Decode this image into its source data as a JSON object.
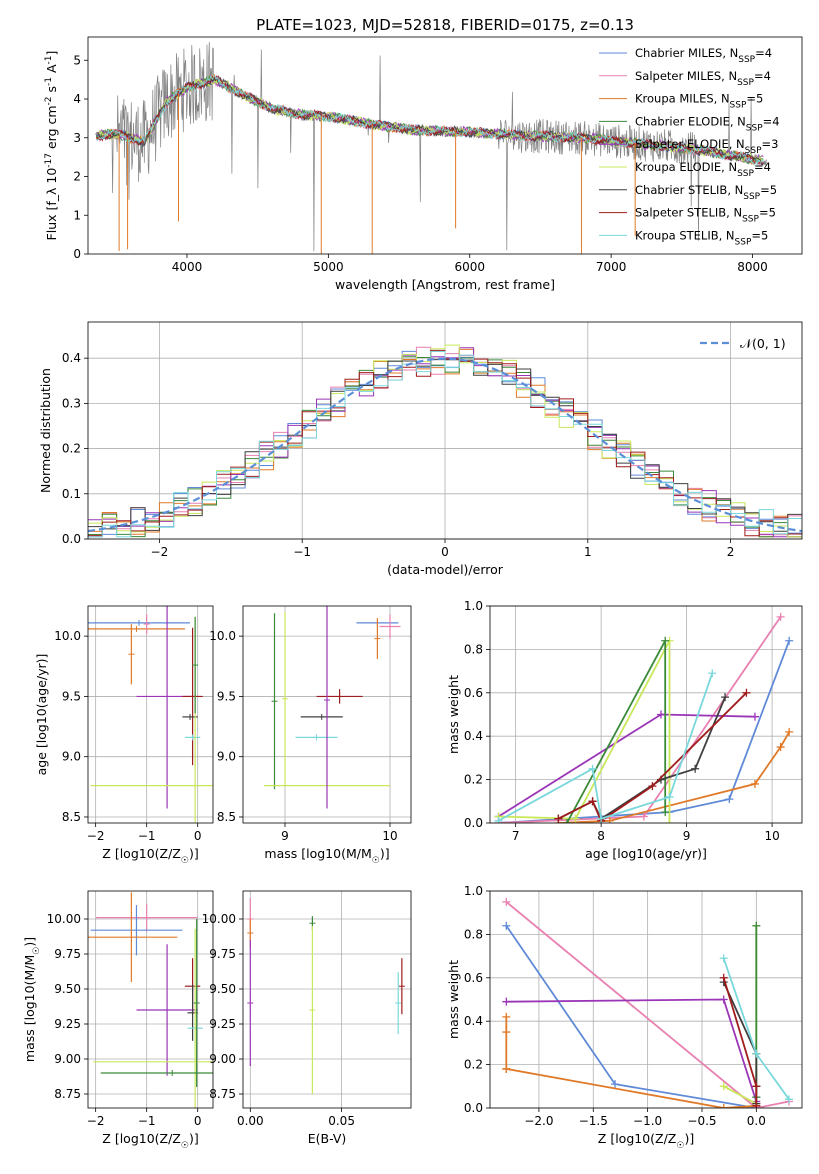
{
  "figure": {
    "title": "PLATE=1023, MJD=52818, FIBERID=0175, z=0.13"
  },
  "colors": {
    "chabrier_miles": "#5f8ad8",
    "salpeter_miles": "#e880b0",
    "kroupa_miles": "#e07a28",
    "chabrier_elodie": "#3a8a3a",
    "salpeter_elodie": "#9b35b8",
    "kroupa_elodie": "#c8e85a",
    "chabrier_stelib": "#3f3f3f",
    "salpeter_stelib": "#a01c1c",
    "kroupa_stelib": "#7ad8dc",
    "observed": "#808080",
    "normal": "#5b8fd8"
  },
  "chart_data": [
    {
      "id": "spectrum",
      "type": "line",
      "xlabel": "wavelength [Angstrom, rest frame]",
      "ylabel": "Flux [f_λ 10^-17 erg cm^-2 s^-1 A^-1]",
      "xlim": [
        3300,
        8350
      ],
      "ylim": [
        0,
        5.6
      ],
      "xticks": [
        4000,
        5000,
        6000,
        7000,
        8000
      ],
      "yticks": [
        0,
        1,
        2,
        3,
        4,
        5
      ],
      "legend_position": "top-right",
      "legend": [
        {
          "name": "Chabrier MILES, N_SSP=4",
          "color_key": "chabrier_miles"
        },
        {
          "name": "Salpeter MILES, N_SSP=4",
          "color_key": "salpeter_miles"
        },
        {
          "name": "Kroupa MILES, N_SSP=5",
          "color_key": "kroupa_miles"
        },
        {
          "name": "Chabrier ELODIE, N_SSP=4",
          "color_key": "chabrier_elodie"
        },
        {
          "name": "Salpeter ELODIE, N_SSP=3",
          "color_key": "salpeter_elodie"
        },
        {
          "name": "Kroupa ELODIE, N_SSP=4",
          "color_key": "kroupa_elodie"
        },
        {
          "name": "Chabrier STELIB, N_SSP=5",
          "color_key": "chabrier_stelib"
        },
        {
          "name": "Salpeter STELIB, N_SSP=5",
          "color_key": "salpeter_stelib"
        },
        {
          "name": "Kroupa STELIB, N_SSP=5",
          "color_key": "kroupa_stelib"
        }
      ],
      "continuum": {
        "x": [
          3350,
          3500,
          3700,
          3850,
          4000,
          4200,
          4400,
          4600,
          4800,
          5000,
          5300,
          5600,
          6000,
          6400,
          6800,
          7200,
          7600,
          8000,
          8100
        ],
        "y": [
          3.05,
          3.1,
          2.9,
          3.9,
          4.3,
          4.5,
          4.1,
          3.75,
          3.6,
          3.55,
          3.35,
          3.2,
          3.15,
          3.05,
          3.0,
          2.85,
          2.7,
          2.45,
          2.4
        ]
      },
      "absorption_lines": [
        {
          "x": 3520,
          "depth": 3.0
        },
        {
          "x": 3580,
          "depth": 2.9
        },
        {
          "x": 3940,
          "depth": 3.3
        },
        {
          "x": 4950,
          "depth": 3.6
        },
        {
          "x": 5310,
          "depth": 3.4
        },
        {
          "x": 5900,
          "depth": 2.5
        },
        {
          "x": 6790,
          "depth": 3.0
        },
        {
          "x": 7170,
          "depth": 2.4
        }
      ]
    },
    {
      "id": "residuals",
      "type": "histogram",
      "xlabel": "(data-model)/error",
      "ylabel": "Normed distribution",
      "xlim": [
        -2.5,
        2.5
      ],
      "ylim": [
        0,
        0.48
      ],
      "xticks": [
        -2,
        -1,
        0,
        1,
        2
      ],
      "yticks": [
        0.0,
        0.1,
        0.2,
        0.3,
        0.4
      ],
      "legend_position": "top-right",
      "legend": [
        {
          "name": "𝒩(0, 1)",
          "color_key": "normal"
        }
      ],
      "bin_width": 0.1,
      "grid": true
    },
    {
      "id": "age_vs_Z",
      "type": "errorbar",
      "xlabel": "Z [log10(Z/Z_☉)]",
      "ylabel": "age [log10(age/yr)]",
      "xlim": [
        -2.15,
        0.3
      ],
      "ylim": [
        8.45,
        10.25
      ],
      "xticks": [
        -2,
        -1,
        0
      ],
      "yticks": [
        8.5,
        9.0,
        9.5,
        10.0
      ],
      "points": [
        {
          "color_key": "chabrier_miles",
          "x": -1.15,
          "xerr": 1.0,
          "y": 10.11,
          "yerr": 0.0
        },
        {
          "color_key": "kroupa_miles",
          "x": -1.2,
          "xerr": 0.95,
          "y": 10.06,
          "yerr": 0.0
        },
        {
          "color_key": "salpeter_miles",
          "x": -1.0,
          "xerr": 0.0,
          "y": 10.1,
          "yerr": 0.08
        },
        {
          "color_key": "kroupa_miles",
          "x": -1.3,
          "xerr": 0.0,
          "y": 9.85,
          "yerr": 0.25
        },
        {
          "color_key": "salpeter_elodie",
          "x": -0.6,
          "xerr": 0.6,
          "y": 9.5,
          "yerr": 0.93
        },
        {
          "color_key": "salpeter_stelib",
          "x": -0.1,
          "xerr": 0.2,
          "y": 9.5,
          "yerr": 0.57
        },
        {
          "color_key": "chabrier_stelib",
          "x": -0.15,
          "xerr": 0.15,
          "y": 9.33,
          "yerr": 0.0
        },
        {
          "color_key": "kroupa_stelib",
          "x": -0.1,
          "xerr": 0.15,
          "y": 9.16,
          "yerr": 0.0
        },
        {
          "color_key": "kroupa_elodie",
          "x": -0.05,
          "xerr": 2.05,
          "y": 8.76,
          "yerr": 1.4
        },
        {
          "color_key": "chabrier_elodie",
          "x": -0.05,
          "xerr": 0.0,
          "y": 9.76,
          "yerr": 0.4
        }
      ]
    },
    {
      "id": "age_vs_mass",
      "type": "errorbar",
      "xlabel": "mass [log10(M/M_☉)]",
      "ylabel": "",
      "xlim": [
        8.6,
        10.2
      ],
      "ylim": [
        8.45,
        10.25
      ],
      "xticks": [
        9,
        10
      ],
      "yticks": [
        8.5,
        9.0,
        9.5,
        10.0
      ],
      "points": [
        {
          "color_key": "chabrier_elodie",
          "x": 8.9,
          "xerr": 0.0,
          "y": 9.46,
          "yerr": 0.73
        },
        {
          "color_key": "kroupa_elodie",
          "x": 9.0,
          "xerr": 0.0,
          "y": 9.48,
          "yerr": 0.72
        },
        {
          "color_key": "kroupa_elodie",
          "x": 9.4,
          "xerr": 0.6,
          "y": 8.76,
          "yerr": 0.0
        },
        {
          "color_key": "kroupa_stelib",
          "x": 9.3,
          "xerr": 0.2,
          "y": 9.16,
          "yerr": 0.0
        },
        {
          "color_key": "chabrier_stelib",
          "x": 9.35,
          "xerr": 0.2,
          "y": 9.33,
          "yerr": 0.0
        },
        {
          "color_key": "salpeter_stelib",
          "x": 9.52,
          "xerr": 0.22,
          "y": 9.5,
          "yerr": 0.06
        },
        {
          "color_key": "salpeter_elodie",
          "x": 9.4,
          "xerr": 0.0,
          "y": 9.47,
          "yerr": 0.9
        },
        {
          "color_key": "chabrier_miles",
          "x": 9.88,
          "xerr": 0.2,
          "y": 10.11,
          "yerr": 0.0
        },
        {
          "color_key": "kroupa_miles",
          "x": 9.88,
          "xerr": 0.0,
          "y": 9.98,
          "yerr": 0.17
        },
        {
          "color_key": "salpeter_miles",
          "x": 10.0,
          "xerr": 0.1,
          "y": 10.08,
          "yerr": 0.1
        }
      ]
    },
    {
      "id": "mass_weight_vs_age",
      "type": "line",
      "xlabel": "age [log10(age/yr)]",
      "ylabel": "mass weight",
      "xlim": [
        6.7,
        10.35
      ],
      "ylim": [
        0,
        1.0
      ],
      "xticks": [
        7,
        8,
        9,
        10
      ],
      "yticks": [
        0.0,
        0.2,
        0.4,
        0.6,
        0.8,
        1.0
      ],
      "series": [
        {
          "color_key": "chabrier_miles",
          "x": [
            6.8,
            8.8,
            9.5,
            10.2
          ],
          "y": [
            0.0,
            0.05,
            0.11,
            0.84
          ]
        },
        {
          "color_key": "salpeter_miles",
          "x": [
            6.8,
            8.5,
            10.1
          ],
          "y": [
            0.0,
            0.03,
            0.95
          ]
        },
        {
          "color_key": "kroupa_miles",
          "x": [
            7.5,
            8.1,
            9.8,
            10.1,
            10.2
          ],
          "y": [
            0.0,
            0.01,
            0.18,
            0.35,
            0.42
          ]
        },
        {
          "color_key": "salpeter_elodie",
          "x": [
            6.8,
            8.7,
            9.8
          ],
          "y": [
            0.03,
            0.5,
            0.49
          ]
        },
        {
          "color_key": "kroupa_elodie",
          "x": [
            6.8,
            7.7,
            8.8,
            8.8
          ],
          "y": [
            0.03,
            0.02,
            0.84,
            0.0
          ]
        },
        {
          "color_key": "chabrier_elodie",
          "x": [
            7.6,
            8.75,
            8.75
          ],
          "y": [
            0.0,
            0.84,
            0.05
          ]
        },
        {
          "color_key": "chabrier_stelib",
          "x": [
            7.5,
            7.9,
            8.0,
            8.7,
            9.1,
            9.45
          ],
          "y": [
            0.02,
            0.1,
            0.02,
            0.2,
            0.25,
            0.58
          ]
        },
        {
          "color_key": "salpeter_stelib",
          "x": [
            7.5,
            7.9,
            8.0,
            8.6,
            9.7
          ],
          "y": [
            0.02,
            0.1,
            0.01,
            0.17,
            0.6
          ]
        },
        {
          "color_key": "kroupa_stelib",
          "x": [
            6.8,
            7.9,
            8.0,
            8.8,
            9.3
          ],
          "y": [
            0.01,
            0.25,
            0.02,
            0.12,
            0.69
          ]
        }
      ]
    },
    {
      "id": "mass_vs_Z",
      "type": "errorbar",
      "xlabel": "Z [log10(Z/Z_☉)]",
      "ylabel": "mass [log10(M/M_☉)]",
      "xlim": [
        -2.15,
        0.3
      ],
      "ylim": [
        8.65,
        10.2
      ],
      "xticks": [
        -2,
        -1,
        0
      ],
      "yticks": [
        8.75,
        9.0,
        9.25,
        9.5,
        9.75,
        10.0
      ],
      "points": [
        {
          "color_key": "salpeter_miles",
          "x": -1.0,
          "xerr": 1.0,
          "y": 10.01,
          "yerr": 0.1
        },
        {
          "color_key": "chabrier_miles",
          "x": -1.2,
          "xerr": 0.9,
          "y": 9.92,
          "yerr": 0.18
        },
        {
          "color_key": "kroupa_miles",
          "x": -1.3,
          "xerr": 0.9,
          "y": 9.87,
          "yerr": 0.32
        },
        {
          "color_key": "salpeter_elodie",
          "x": -0.6,
          "xerr": 0.6,
          "y": 9.35,
          "yerr": 0.47
        },
        {
          "color_key": "salpeter_stelib",
          "x": -0.1,
          "xerr": 0.15,
          "y": 9.52,
          "yerr": 0.2
        },
        {
          "color_key": "chabrier_stelib",
          "x": -0.1,
          "xerr": 0.1,
          "y": 9.33,
          "yerr": 0.2
        },
        {
          "color_key": "kroupa_stelib",
          "x": -0.05,
          "xerr": 0.15,
          "y": 9.22,
          "yerr": 0.0
        },
        {
          "color_key": "kroupa_elodie",
          "x": -0.05,
          "xerr": 2.0,
          "y": 8.98,
          "yerr": 0.95
        },
        {
          "color_key": "chabrier_elodie",
          "x": -0.5,
          "xerr": 1.4,
          "y": 8.9,
          "yerr": 0.0
        },
        {
          "color_key": "chabrier_elodie",
          "x": -0.02,
          "xerr": 0.0,
          "y": 9.4,
          "yerr": 0.6
        }
      ]
    },
    {
      "id": "mass_vs_EBV",
      "type": "errorbar",
      "xlabel": "E(B-V)",
      "ylabel": "",
      "xlim": [
        -0.004,
        0.088
      ],
      "ylim": [
        8.65,
        10.2
      ],
      "xticks": [
        0.0,
        0.05
      ],
      "yticks": [
        8.75,
        9.0,
        9.25,
        9.5,
        9.75,
        10.0
      ],
      "tick_labels_x": [
        "0.00",
        "0.05"
      ],
      "tick_labels_y": [
        "8.75",
        "9.00",
        "9.25",
        "9.50",
        "9.75",
        "10.00"
      ],
      "points": [
        {
          "color_key": "salpeter_miles",
          "x": 0.0,
          "xerr": 0.0,
          "y": 10.0,
          "yerr": 0.15
        },
        {
          "color_key": "kroupa_miles",
          "x": 0.0,
          "xerr": 0.0,
          "y": 9.9,
          "yerr": 0.1
        },
        {
          "color_key": "salpeter_elodie",
          "x": 0.0,
          "xerr": 0.0,
          "y": 9.4,
          "yerr": 0.45
        },
        {
          "color_key": "chabrier_elodie",
          "x": 0.034,
          "xerr": 0.0,
          "y": 9.97,
          "yerr": 0.05
        },
        {
          "color_key": "kroupa_elodie",
          "x": 0.034,
          "xerr": 0.0,
          "y": 9.35,
          "yerr": 0.6
        },
        {
          "color_key": "kroupa_stelib",
          "x": 0.081,
          "xerr": 0.0,
          "y": 9.4,
          "yerr": 0.22
        },
        {
          "color_key": "salpeter_stelib",
          "x": 0.083,
          "xerr": 0.0,
          "y": 9.52,
          "yerr": 0.2
        }
      ]
    },
    {
      "id": "mass_weight_vs_Z",
      "type": "line",
      "xlabel": "Z [log10(Z/Z_☉)]",
      "ylabel": "mass weight",
      "xlim": [
        -2.45,
        0.42
      ],
      "ylim": [
        0,
        1.0
      ],
      "xticks": [
        -2.0,
        -1.5,
        -1.0,
        -0.5,
        0.0
      ],
      "yticks": [
        0.0,
        0.2,
        0.4,
        0.6,
        0.8,
        1.0
      ],
      "tick_labels_x": [
        "−2.0",
        "−1.5",
        "−1.0",
        "−0.5",
        "0.0"
      ],
      "series": [
        {
          "color_key": "chabrier_miles",
          "x": [
            -2.3,
            -1.3,
            0.0,
            0.0
          ],
          "y": [
            0.84,
            0.11,
            0.0,
            0.05
          ]
        },
        {
          "color_key": "salpeter_miles",
          "x": [
            -2.3,
            0.0,
            0.3
          ],
          "y": [
            0.95,
            0.0,
            0.03
          ]
        },
        {
          "color_key": "kroupa_miles",
          "x": [
            -2.3,
            -2.3,
            -2.3,
            -2.3,
            -0.3,
            0.0
          ],
          "y": [
            0.42,
            0.35,
            0.18,
            0.18,
            0.0,
            0.01
          ]
        },
        {
          "color_key": "salpeter_elodie",
          "x": [
            -2.3,
            -0.3,
            0.0
          ],
          "y": [
            0.49,
            0.5,
            0.03
          ]
        },
        {
          "color_key": "kroupa_elodie",
          "x": [
            -0.3,
            0.0,
            0.0
          ],
          "y": [
            0.1,
            0.02,
            0.84
          ]
        },
        {
          "color_key": "chabrier_elodie",
          "x": [
            0.0,
            0.0
          ],
          "y": [
            0.84,
            0.05
          ]
        },
        {
          "color_key": "chabrier_stelib",
          "x": [
            -0.3,
            0.0,
            0.0,
            0.0
          ],
          "y": [
            0.58,
            0.25,
            0.1,
            0.02
          ]
        },
        {
          "color_key": "salpeter_stelib",
          "x": [
            -0.3,
            0.0,
            0.0
          ],
          "y": [
            0.6,
            0.1,
            0.01
          ]
        },
        {
          "color_key": "kroupa_stelib",
          "x": [
            -0.3,
            0.0,
            0.3
          ],
          "y": [
            0.69,
            0.25,
            0.04
          ]
        }
      ]
    }
  ]
}
